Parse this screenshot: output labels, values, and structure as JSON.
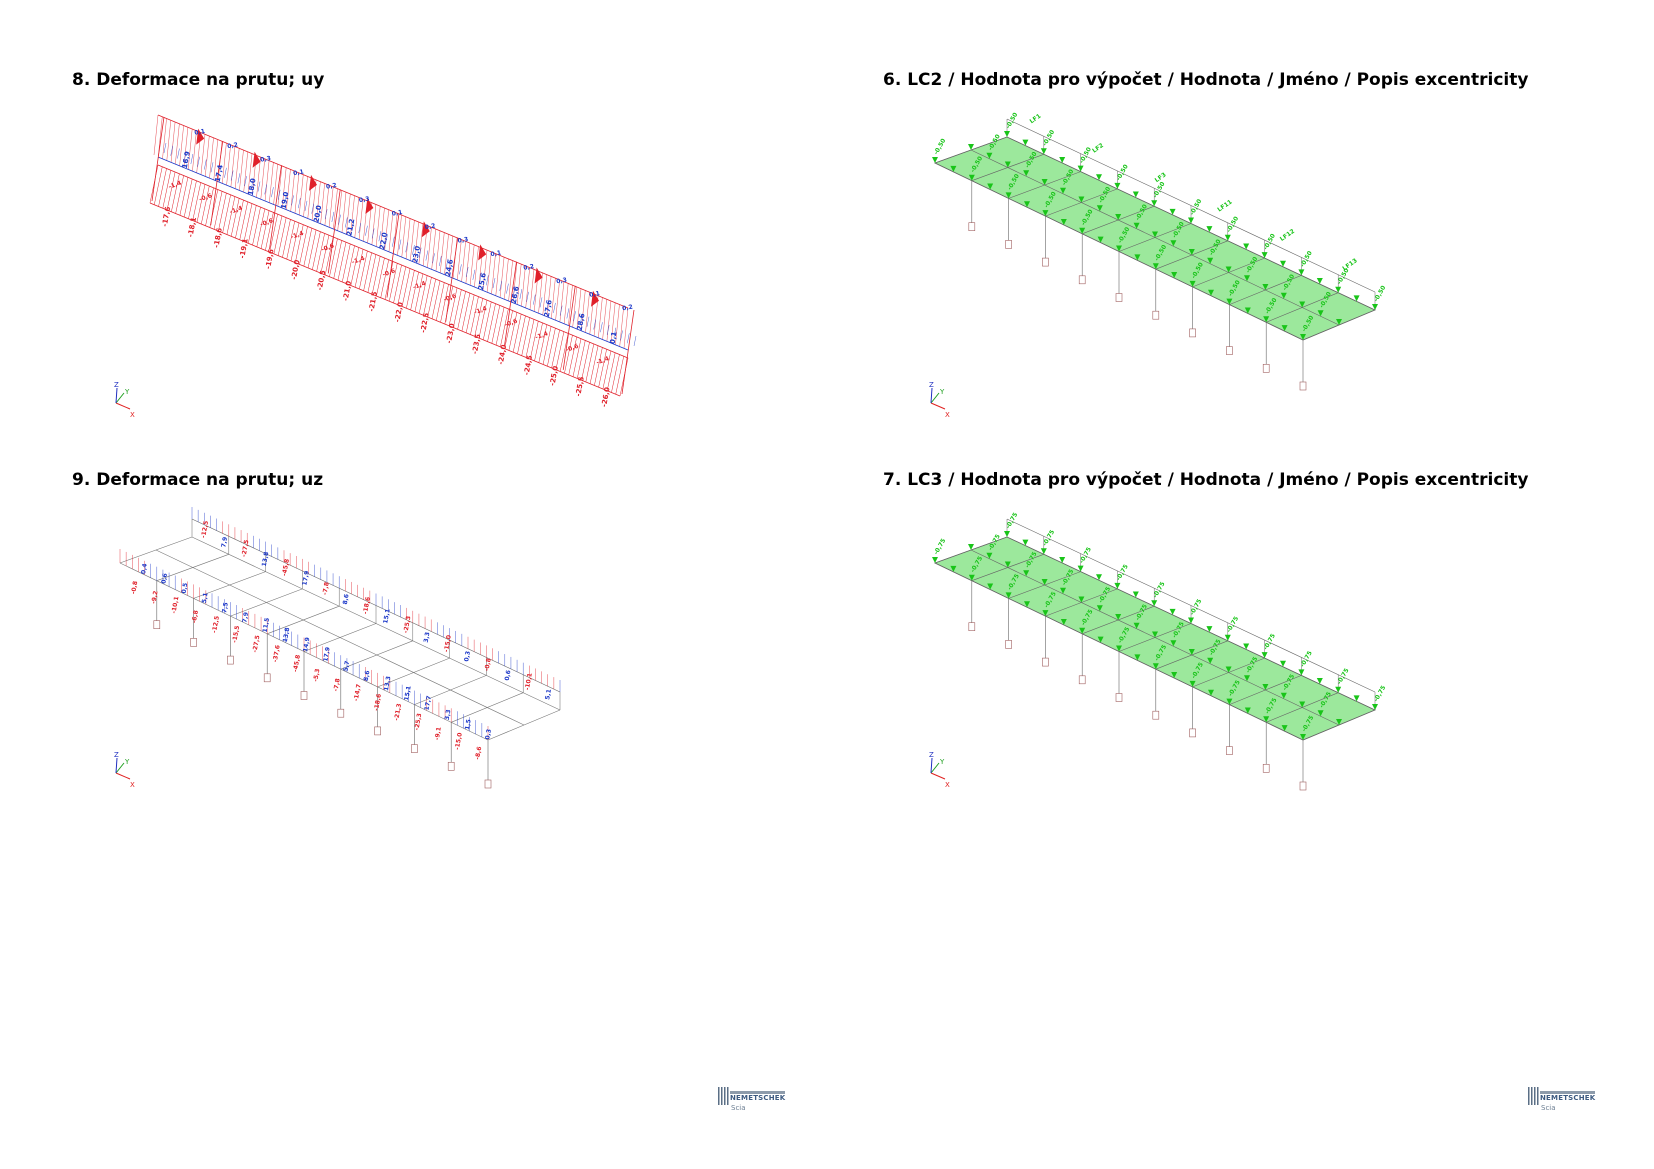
{
  "panels": [
    {
      "id": "p8",
      "title": "8. Deformace na prutu; uy"
    },
    {
      "id": "p6",
      "title": "6. LC2 / Hodnota pro výpočet / Hodnota / Jméno / Popis excentricity"
    },
    {
      "id": "p9",
      "title": "9. Deformace na prutu; uz"
    },
    {
      "id": "p7",
      "title": "7. LC3 / Hodnota pro výpočet / Hodnota / Jméno / Popis excentricity"
    }
  ],
  "uy_labels": {
    "red": [
      "-1,4",
      "-0,6",
      "-17,6",
      "-18,1",
      "-18,6",
      "-19,1",
      "-19,6",
      "-20,0",
      "-20,5",
      "-21,0",
      "-21,5",
      "-22,0",
      "-22,5",
      "-23,0",
      "-23,5",
      "-24,0",
      "-24,5",
      "-25,0",
      "-25,5",
      "-26,0",
      "-27,0",
      "-28,0"
    ],
    "blue": [
      "0,1",
      "0,2",
      "0,3",
      "16,9",
      "17,4",
      "18,0",
      "19,0",
      "20,0",
      "21,2",
      "22,0",
      "23,0",
      "24,6",
      "25,6",
      "26,6",
      "27,6",
      "28,6"
    ]
  },
  "uz_labels": {
    "red": [
      "-0,8",
      "-9,2",
      "-10,1",
      "-6,8",
      "-12,5",
      "-15,5",
      "-27,5",
      "-37,6",
      "-45,8",
      "-5,3",
      "-7,8",
      "-14,7",
      "-18,6",
      "-21,3",
      "-25,3",
      "-9,1",
      "-15,0",
      "-8,6",
      "-4,9"
    ],
    "blue": [
      "0,4",
      "0,6",
      "0,5",
      "5,1",
      "7,5",
      "7,9",
      "11,5",
      "13,8",
      "14,9",
      "17,9",
      "5,7",
      "8,6",
      "13,3",
      "15,1",
      "17,7",
      "3,3",
      "1,5",
      "0,3"
    ]
  },
  "load_labels": {
    "lc2": [
      "-0,50",
      "LF1",
      "LF2",
      "LF3",
      "LF11",
      "LF12",
      "LF13"
    ],
    "lc3": [
      "-0,75"
    ]
  },
  "axes": {
    "x": "X",
    "y": "Y",
    "z": "Z"
  },
  "logo": {
    "name": "NEMETSCHEK",
    "sub": "Scia"
  },
  "colors": {
    "red": "#e0202a",
    "blue": "#1a36c8",
    "green": "#7be07b",
    "load_green": "#19c419",
    "edge": "#666666"
  }
}
